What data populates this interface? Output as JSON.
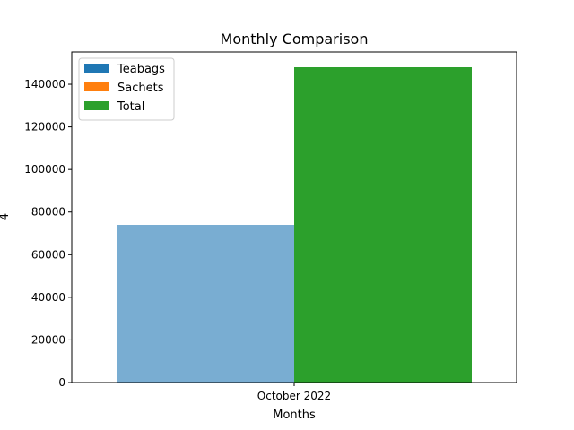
{
  "chart_data": {
    "type": "bar",
    "title": "Monthly Comparison",
    "xlabel": "Months",
    "ylabel": "4",
    "categories": [
      "October 2022"
    ],
    "ylim": [
      0,
      148000
    ],
    "yticks": [
      0,
      20000,
      40000,
      60000,
      80000,
      100000,
      120000,
      140000
    ],
    "ytick_labels": [
      "0",
      "20000",
      "40000",
      "60000",
      "80000",
      "100000",
      "120000",
      "140000"
    ],
    "legend_position": "upper-left",
    "grid": false,
    "series": [
      {
        "name": "Teabags",
        "color": "#1f77b4",
        "values": [
          74000
        ],
        "offset": "left",
        "alpha": 0.6
      },
      {
        "name": "Sachets",
        "color": "#ff7f0e",
        "values": [
          0
        ],
        "offset": "left",
        "alpha": 0.6
      },
      {
        "name": "Total",
        "color": "#2ca02c",
        "values": [
          148000
        ],
        "offset": "right",
        "alpha": 1.0
      }
    ]
  }
}
